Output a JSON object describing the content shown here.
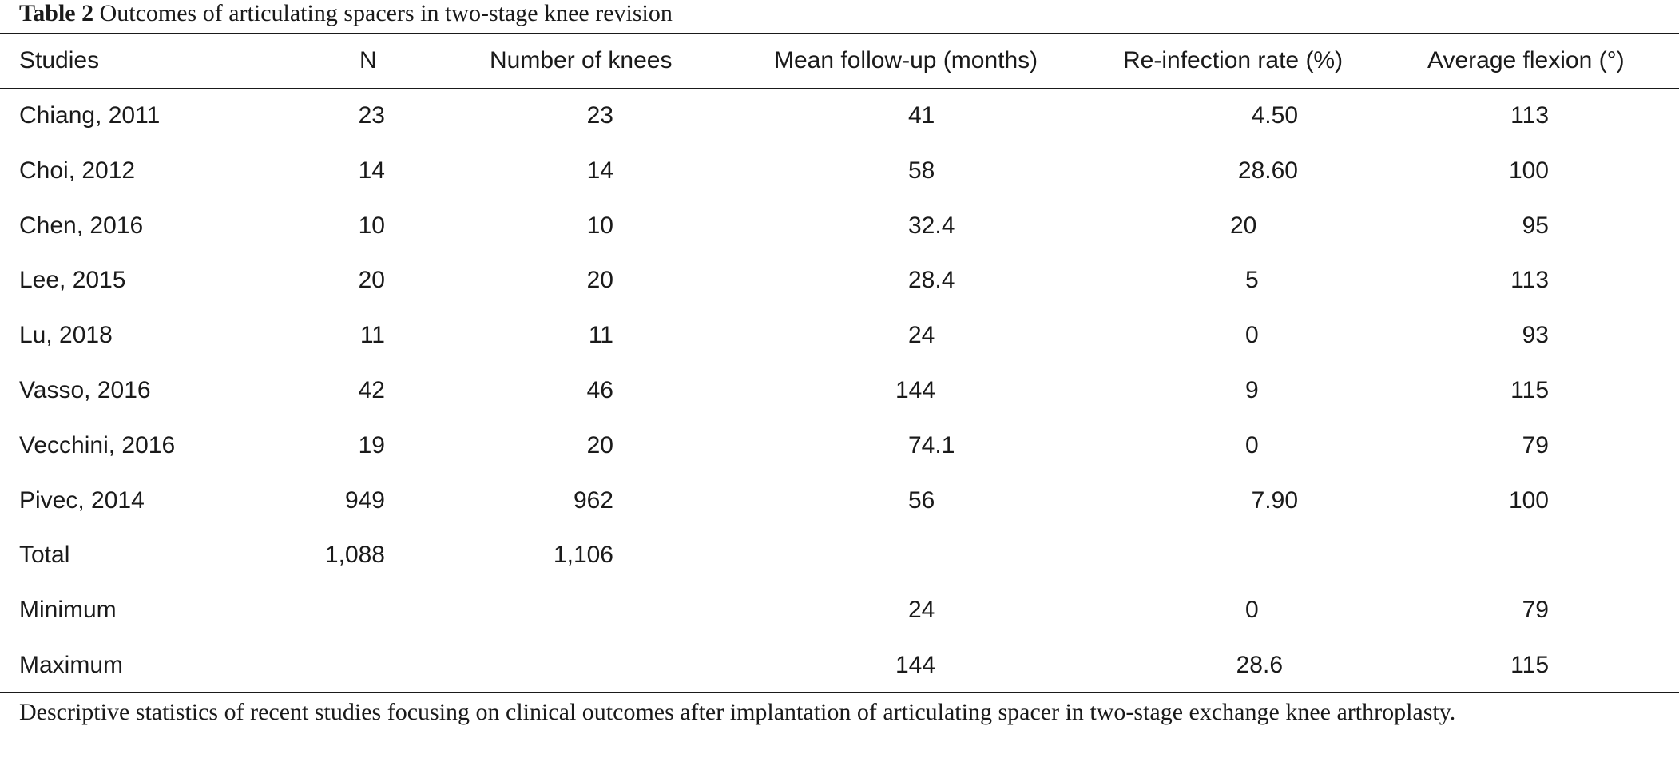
{
  "title": {
    "label": "Table 2",
    "text": "Outcomes of articulating spacers in two-stage knee revision"
  },
  "columns": {
    "study": "Studies",
    "n": "N",
    "knees": "Number of knees",
    "followup": "Mean follow-up (months)",
    "reinfection": "Re-infection rate (%)",
    "flexion": "Average flexion (°)"
  },
  "rows": [
    {
      "study": "Chiang, 2011",
      "n": "23",
      "knees": "23",
      "followup": "41",
      "reinfection": "4.50",
      "flexion": "113"
    },
    {
      "study": "Choi, 2012",
      "n": "14",
      "knees": "14",
      "followup": "58",
      "reinfection": "28.60",
      "flexion": "100"
    },
    {
      "study": "Chen, 2016",
      "n": "10",
      "knees": "10",
      "followup": "32.4",
      "reinfection": "20",
      "flexion": "95"
    },
    {
      "study": "Lee, 2015",
      "n": "20",
      "knees": "20",
      "followup": "28.4",
      "reinfection": "5",
      "flexion": "113"
    },
    {
      "study": "Lu, 2018",
      "n": "11",
      "knees": "11",
      "followup": "24",
      "reinfection": "0",
      "flexion": "93"
    },
    {
      "study": "Vasso, 2016",
      "n": "42",
      "knees": "46",
      "followup": "144",
      "reinfection": "9",
      "flexion": "115"
    },
    {
      "study": "Vecchini, 2016",
      "n": "19",
      "knees": "20",
      "followup": "74.1",
      "reinfection": "0",
      "flexion": "79"
    },
    {
      "study": "Pivec, 2014",
      "n": "949",
      "knees": "962",
      "followup": "56",
      "reinfection": "7.90",
      "flexion": "100"
    },
    {
      "study": "Total",
      "n": "1,088",
      "knees": "1,106",
      "followup": "",
      "reinfection": "",
      "flexion": ""
    },
    {
      "study": "Minimum",
      "n": "",
      "knees": "",
      "followup": "24",
      "reinfection": "0",
      "flexion": "79"
    },
    {
      "study": "Maximum",
      "n": "",
      "knees": "",
      "followup": "144",
      "reinfection": "28.6",
      "flexion": "115"
    }
  ],
  "footnote": "Descriptive statistics of recent studies focusing on clinical outcomes after implantation of articulating spacer in two-stage exchange knee arthroplasty."
}
